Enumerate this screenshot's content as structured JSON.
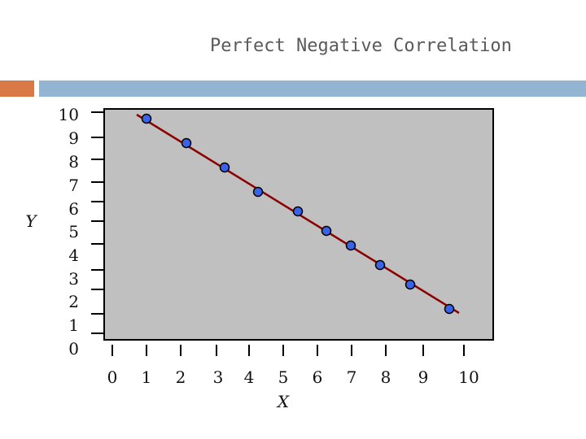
{
  "colors": {
    "accent": "#d97a46",
    "band": "#93b5d2",
    "plot_bg": "#c0c0c0",
    "line": "#8b0000",
    "point": "#3a63e8"
  },
  "chart_data": {
    "type": "scatter",
    "title": "Perfect Negative Correlation",
    "xlabel": "X",
    "ylabel": "Y",
    "x_ticks": [
      "0",
      "1",
      "2",
      "3",
      "4",
      "5",
      "6",
      "7",
      "8",
      "9",
      "10"
    ],
    "y_ticks": [
      "10",
      "9",
      "8",
      "7",
      "6",
      "5",
      "4",
      "3",
      "2",
      "1",
      "0"
    ],
    "grid": false,
    "points": [
      {
        "x": 1.0,
        "y": 9.8
      },
      {
        "x": 2.1,
        "y": 8.8
      },
      {
        "x": 3.2,
        "y": 7.8
      },
      {
        "x": 4.2,
        "y": 6.8
      },
      {
        "x": 5.4,
        "y": 5.8
      },
      {
        "x": 6.3,
        "y": 5.0
      },
      {
        "x": 7.0,
        "y": 4.4
      },
      {
        "x": 7.9,
        "y": 3.6
      },
      {
        "x": 8.7,
        "y": 2.8
      },
      {
        "x": 9.8,
        "y": 1.7
      }
    ],
    "trend_line": {
      "x": [
        0.8,
        10.1
      ],
      "y": [
        10.0,
        1.5
      ]
    }
  }
}
